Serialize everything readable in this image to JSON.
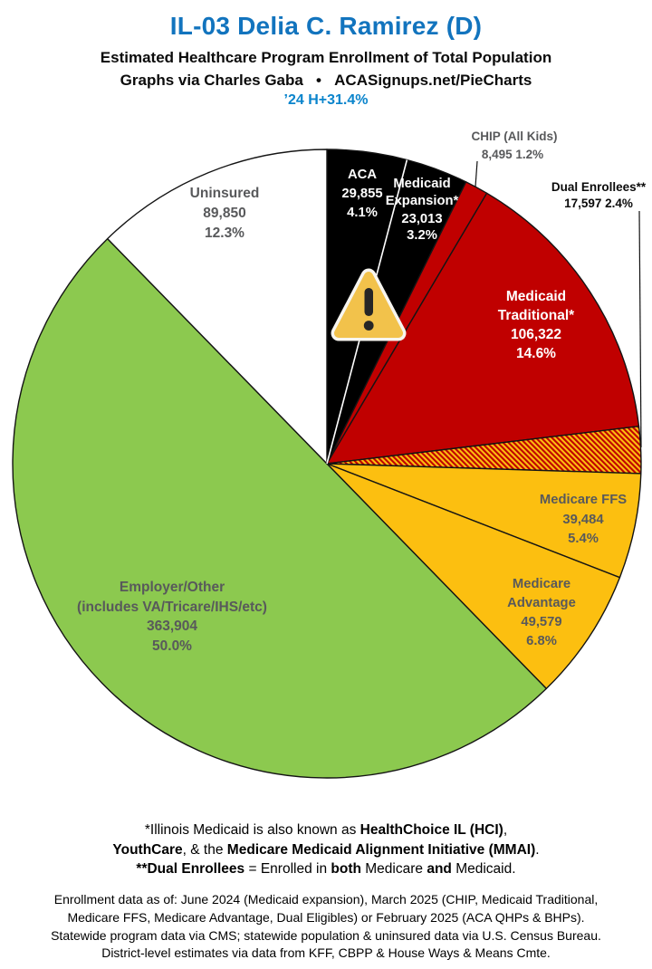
{
  "header": {
    "title": "IL-03 Delia C. Ramirez (D)",
    "subtitle": "Estimated Healthcare Program Enrollment of Total Population",
    "credit": "Graphs via Charles Gaba   •   ACASignups.net/PieCharts",
    "tag": "’24 H+31.4%"
  },
  "colors": {
    "title_blue": "#1274BE",
    "tag_blue": "#0A84CC",
    "dark_red": "#C00000",
    "gold": "#FCBF10",
    "green": "#8CC94F",
    "black": "#000000",
    "white": "#FFFFFF",
    "gray_label": "#58595B",
    "warning_triangle_gold": "#F2C24B"
  },
  "icons": {
    "warning": "warning-triangle-icon"
  },
  "chart_data": {
    "type": "pie",
    "title": "Estimated Healthcare Program Enrollment of Total Population",
    "units": "people",
    "rotation": "clockwise from 12 o'clock",
    "legend_position": "labels on/beside slices",
    "hatch_colors": [
      "#FCBF10",
      "#C00000"
    ],
    "slices": [
      {
        "name": "ACA",
        "value": 29855,
        "pct": 4.1,
        "color": "#000000",
        "label_lines": [
          "ACA",
          "29,855",
          "4.1%"
        ]
      },
      {
        "name": "Medicaid Expansion*",
        "value": 23013,
        "pct": 3.2,
        "color": "#000000",
        "label_lines": [
          "Medicaid",
          "Expansion*",
          "23,013",
          "3.2%"
        ]
      },
      {
        "name": "CHIP (All Kids)",
        "value": 8495,
        "pct": 1.2,
        "color": "#C00000",
        "label_lines": [
          "CHIP (All Kids)",
          "8,495 1.2%"
        ]
      },
      {
        "name": "Medicaid Traditional*",
        "value": 106322,
        "pct": 14.6,
        "color": "#C00000",
        "label_lines": [
          "Medicaid",
          "Traditional*",
          "106,322",
          "14.6%"
        ]
      },
      {
        "name": "Dual Enrollees**",
        "value": 17597,
        "pct": 2.4,
        "color": "#FCBF10",
        "hatch": true,
        "label_lines": [
          "Dual Enrollees**",
          "17,597 2.4%"
        ]
      },
      {
        "name": "Medicare FFS",
        "value": 39484,
        "pct": 5.4,
        "color": "#FCBF10",
        "label_lines": [
          "Medicare FFS",
          "39,484",
          "5.4%"
        ]
      },
      {
        "name": "Medicare Advantage",
        "value": 49579,
        "pct": 6.8,
        "color": "#FCBF10",
        "label_lines": [
          "Medicare",
          "Advantage",
          "49,579",
          "6.8%"
        ]
      },
      {
        "name": "Employer/Other",
        "value": 363904,
        "pct": 50.0,
        "color": "#8CC94F",
        "label_lines": [
          "Employer/Other",
          "(includes VA/Tricare/IHS/etc)",
          "363,904",
          "50.0%"
        ]
      },
      {
        "name": "Uninsured",
        "value": 89850,
        "pct": 12.3,
        "color": "#FFFFFF",
        "label_lines": [
          "Uninsured",
          "89,850",
          "12.3%"
        ]
      }
    ]
  },
  "footnote_bold": {
    "line1": [
      "*Illinois Medicaid is also known as ",
      "HealthChoice IL (HCI)",
      ","
    ],
    "line2": [
      "YouthCare",
      ", & the ",
      "Medicare Medicaid Alignment Initiative (MMAI)",
      "."
    ],
    "line3": [
      "**Dual Enrollees",
      " = Enrolled in ",
      "both",
      " Medicare ",
      "and",
      " Medicaid."
    ]
  },
  "footnote_small": {
    "line1": "Enrollment data as of: June 2024 (Medicaid expansion), March 2025 (CHIP, Medicaid Traditional,",
    "line2": "Medicare FFS, Medicare Advantage, Dual Eligibles) or February 2025 (ACA QHPs & BHPs).",
    "line3": "Statewide program data via CMS; statewide population & uninsured data via U.S. Census Bureau.",
    "line4": "District-level estimates via data from KFF, CBPP & House Ways & Means Cmte."
  }
}
